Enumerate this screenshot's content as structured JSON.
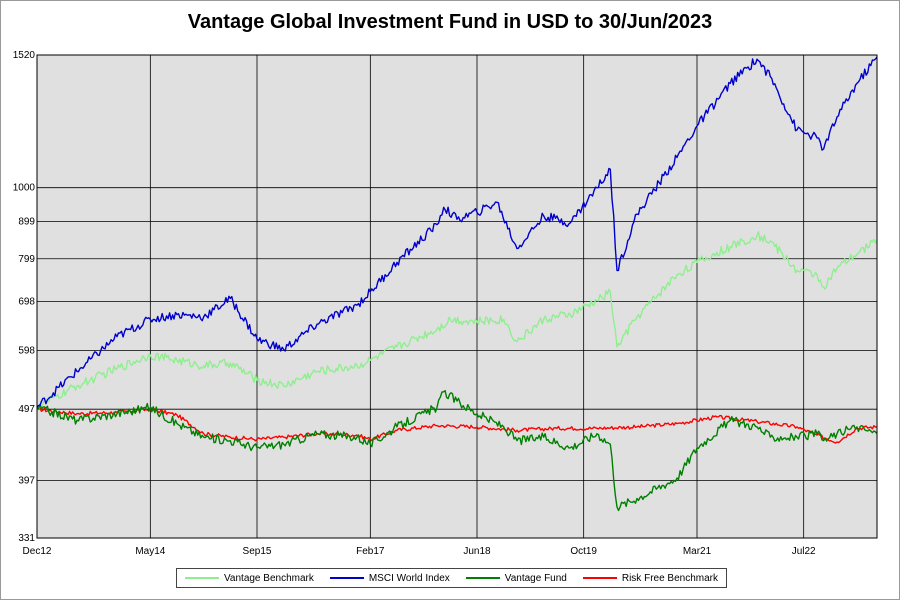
{
  "chart_data": {
    "type": "line",
    "title": "Vantage Global Investment Fund in USD to 30/Jun/2023",
    "xlabel": "",
    "ylabel": "",
    "y_scale": "log",
    "ylim": [
      331,
      1520
    ],
    "y_ticks": [
      331,
      397,
      497,
      598,
      698,
      799,
      899,
      1000,
      1520
    ],
    "x_ticks": [
      "Dec12",
      "May14",
      "Sep15",
      "Feb17",
      "Jun18",
      "Oct19",
      "Mar21",
      "Jul22"
    ],
    "x_range": [
      "2012-12",
      "2023-06"
    ],
    "grid": true,
    "legend_position": "bottom",
    "background_color": "#e0e0e0",
    "series": [
      {
        "name": "Vantage Benchmark",
        "color": "#90ee90",
        "points": [
          [
            "2012-12",
            500
          ],
          [
            "2013-06",
            535
          ],
          [
            "2013-12",
            565
          ],
          [
            "2014-05",
            590
          ],
          [
            "2014-09",
            580
          ],
          [
            "2015-01",
            570
          ],
          [
            "2015-05",
            575
          ],
          [
            "2015-09",
            545
          ],
          [
            "2016-01",
            535
          ],
          [
            "2016-06",
            560
          ],
          [
            "2016-12",
            570
          ],
          [
            "2017-02",
            580
          ],
          [
            "2017-06",
            605
          ],
          [
            "2017-12",
            640
          ],
          [
            "2018-02",
            660
          ],
          [
            "2018-06",
            655
          ],
          [
            "2018-10",
            660
          ],
          [
            "2018-12",
            615
          ],
          [
            "2019-04",
            660
          ],
          [
            "2019-08",
            670
          ],
          [
            "2019-12",
            700
          ],
          [
            "2020-02",
            720
          ],
          [
            "2020-03",
            605
          ],
          [
            "2020-06",
            665
          ],
          [
            "2020-12",
            760
          ],
          [
            "2021-03",
            790
          ],
          [
            "2021-08",
            830
          ],
          [
            "2021-12",
            860
          ],
          [
            "2022-02",
            845
          ],
          [
            "2022-06",
            770
          ],
          [
            "2022-09",
            760
          ],
          [
            "2022-10",
            730
          ],
          [
            "2022-12",
            775
          ],
          [
            "2023-03",
            810
          ],
          [
            "2023-06",
            850
          ]
        ]
      },
      {
        "name": "MSCI World Index",
        "color": "#0000cc",
        "points": [
          [
            "2012-12",
            500
          ],
          [
            "2013-06",
            560
          ],
          [
            "2013-12",
            625
          ],
          [
            "2014-05",
            660
          ],
          [
            "2014-09",
            670
          ],
          [
            "2015-01",
            665
          ],
          [
            "2015-05",
            705
          ],
          [
            "2015-09",
            620
          ],
          [
            "2016-01",
            600
          ],
          [
            "2016-06",
            650
          ],
          [
            "2016-12",
            690
          ],
          [
            "2017-02",
            720
          ],
          [
            "2017-06",
            790
          ],
          [
            "2017-12",
            890
          ],
          [
            "2018-01",
            940
          ],
          [
            "2018-03",
            905
          ],
          [
            "2018-06",
            925
          ],
          [
            "2018-09",
            955
          ],
          [
            "2018-12",
            825
          ],
          [
            "2019-04",
            915
          ],
          [
            "2019-08",
            895
          ],
          [
            "2019-12",
            1000
          ],
          [
            "2020-02",
            1060
          ],
          [
            "2020-03",
            770
          ],
          [
            "2020-06",
            920
          ],
          [
            "2020-12",
            1100
          ],
          [
            "2021-03",
            1215
          ],
          [
            "2021-08",
            1390
          ],
          [
            "2021-12",
            1500
          ],
          [
            "2022-02",
            1420
          ],
          [
            "2022-06",
            1200
          ],
          [
            "2022-09",
            1170
          ],
          [
            "2022-10",
            1130
          ],
          [
            "2022-12",
            1250
          ],
          [
            "2023-03",
            1390
          ],
          [
            "2023-06",
            1510
          ]
        ]
      },
      {
        "name": "Vantage Fund",
        "color": "#008000",
        "points": [
          [
            "2012-12",
            500
          ],
          [
            "2013-06",
            480
          ],
          [
            "2013-12",
            490
          ],
          [
            "2014-05",
            500
          ],
          [
            "2014-09",
            475
          ],
          [
            "2015-01",
            455
          ],
          [
            "2015-05",
            450
          ],
          [
            "2015-09",
            440
          ],
          [
            "2016-01",
            445
          ],
          [
            "2016-06",
            460
          ],
          [
            "2016-12",
            455
          ],
          [
            "2017-02",
            445
          ],
          [
            "2017-06",
            470
          ],
          [
            "2017-12",
            500
          ],
          [
            "2018-01",
            525
          ],
          [
            "2018-03",
            510
          ],
          [
            "2018-06",
            490
          ],
          [
            "2018-10",
            470
          ],
          [
            "2018-12",
            450
          ],
          [
            "2019-04",
            455
          ],
          [
            "2019-08",
            440
          ],
          [
            "2019-12",
            460
          ],
          [
            "2020-02",
            445
          ],
          [
            "2020-03",
            365
          ],
          [
            "2020-06",
            375
          ],
          [
            "2020-12",
            400
          ],
          [
            "2021-03",
            440
          ],
          [
            "2021-08",
            480
          ],
          [
            "2021-12",
            470
          ],
          [
            "2022-02",
            455
          ],
          [
            "2022-06",
            455
          ],
          [
            "2022-09",
            460
          ],
          [
            "2022-10",
            450
          ],
          [
            "2022-12",
            460
          ],
          [
            "2023-03",
            470
          ],
          [
            "2023-06",
            460
          ]
        ]
      },
      {
        "name": "Risk Free Benchmark",
        "color": "#ff0000",
        "points": [
          [
            "2012-12",
            497
          ],
          [
            "2013-06",
            490
          ],
          [
            "2013-12",
            492
          ],
          [
            "2014-05",
            497
          ],
          [
            "2014-09",
            488
          ],
          [
            "2015-01",
            460
          ],
          [
            "2015-05",
            455
          ],
          [
            "2015-09",
            452
          ],
          [
            "2016-01",
            455
          ],
          [
            "2016-06",
            460
          ],
          [
            "2016-12",
            458
          ],
          [
            "2017-02",
            452
          ],
          [
            "2017-06",
            465
          ],
          [
            "2017-12",
            472
          ],
          [
            "2018-06",
            470
          ],
          [
            "2018-12",
            465
          ],
          [
            "2019-06",
            468
          ],
          [
            "2019-12",
            468
          ],
          [
            "2020-06",
            470
          ],
          [
            "2020-12",
            475
          ],
          [
            "2021-06",
            485
          ],
          [
            "2021-12",
            478
          ],
          [
            "2022-06",
            470
          ],
          [
            "2022-09",
            458
          ],
          [
            "2022-12",
            448
          ],
          [
            "2023-03",
            468
          ],
          [
            "2023-06",
            470
          ]
        ]
      }
    ]
  }
}
